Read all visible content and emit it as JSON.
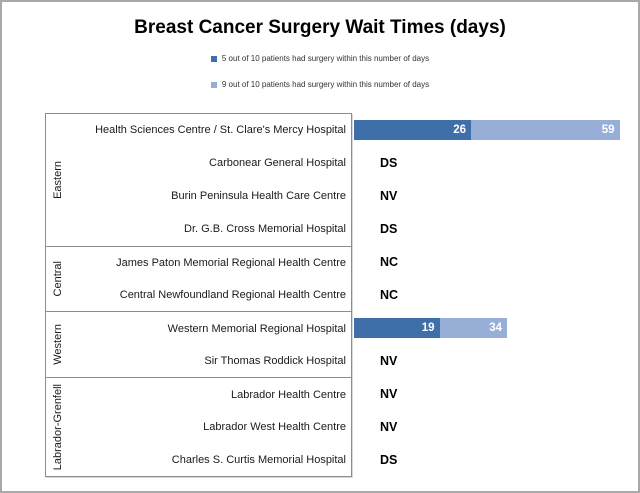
{
  "title": "Breast Cancer Surgery Wait Times (days)",
  "legend": [
    {
      "label": "5 out of 10 patients had surgery within this number of days",
      "color": "#3e6fa9"
    },
    {
      "label": "9 out of 10 patients had surgery within this number of days",
      "color": "#97afd7"
    }
  ],
  "colors": {
    "bar_p50": "#3e6fa9",
    "bar_p90": "#97afd7",
    "bar_value_text": "#ffffff",
    "frame_border": "#a9a9a9",
    "box_border": "#8c8c8c"
  },
  "chart_data": {
    "type": "bar",
    "orientation": "horizontal-stacked",
    "title": "Breast Cancer Surgery Wait Times (days)",
    "unit": "days",
    "grid": false,
    "value_axis_visible": false,
    "legend_position": "top-center",
    "series": [
      {
        "name": "5 out of 10 patients had surgery within this number of days",
        "color": "#3e6fa9"
      },
      {
        "name": "9 out of 10 patients had surgery within this number of days",
        "color": "#97afd7"
      }
    ],
    "regions": [
      {
        "name": "Eastern",
        "hospitals": [
          {
            "name": "Health Sciences Centre / St. Clare's Mercy Hospital",
            "p50": 26,
            "p90": 59
          },
          {
            "name": "Carbonear General Hospital",
            "code": "DS"
          },
          {
            "name": "Burin Peninsula Health Care Centre",
            "code": "NV"
          },
          {
            "name": "Dr. G.B. Cross Memorial Hospital",
            "code": "DS"
          }
        ]
      },
      {
        "name": "Central",
        "hospitals": [
          {
            "name": "James Paton Memorial Regional Health Centre",
            "code": "NC"
          },
          {
            "name": "Central Newfoundland Regional Health Centre",
            "code": "NC"
          }
        ]
      },
      {
        "name": "Western",
        "hospitals": [
          {
            "name": "Western Memorial Regional Hospital",
            "p50": 19,
            "p90": 34
          },
          {
            "name": "Sir Thomas Roddick Hospital",
            "code": "NV"
          }
        ]
      },
      {
        "name": "Labrador-Grenfell",
        "hospitals": [
          {
            "name": "Labrador Health Centre",
            "code": "NV"
          },
          {
            "name": "Labrador West Health Centre",
            "code": "NV"
          },
          {
            "name": "Charles S. Curtis Memorial Hospital",
            "code": "DS"
          }
        ]
      }
    ]
  }
}
